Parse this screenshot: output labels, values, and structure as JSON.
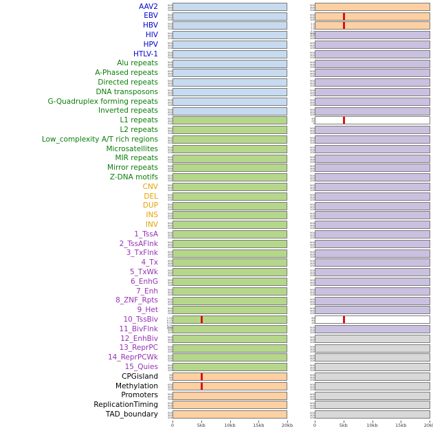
{
  "figure_background": "#ffffff",
  "palette": {
    "blue": "#c6dbef",
    "green": "#b5d78a",
    "peach": "#fdd0a2",
    "purple": "#cac1e0",
    "gray": "#d8d8d8",
    "white": "#ffffff",
    "spike": "#dd1111",
    "panel_border": "#7a7a7a",
    "axis_text": "#333333"
  },
  "label_colors": {
    "virus": "#0000cc",
    "repeat": "#0a7d0a",
    "sv": "#e69f00",
    "chromhmm": "#9632b4",
    "other": "#000000"
  },
  "default_ticks": [
    "500",
    "300",
    "100"
  ],
  "x_axis": {
    "ticks": [
      "0",
      "5kb",
      "10kb",
      "15kb",
      "20kb"
    ]
  },
  "chart_data": {
    "type": "area",
    "title": "",
    "description": "44 genomic feature rows, each with two horizontal signal track panels over a 0-20kb window; signal is flat in most panels with sharp red peaks at the 5kb position in a few panels.",
    "x": {
      "ticks": [
        "0",
        "5kb",
        "10kb",
        "15kb",
        "20kb"
      ],
      "range_kb": [
        0,
        20
      ]
    },
    "columns": 2,
    "spikes_at_5kb": [
      {
        "row": "EBV",
        "column": "right"
      },
      {
        "row": "HBV",
        "column": "right",
        "peak_value": 2.0
      },
      {
        "row": "L1 repeats",
        "column": "right",
        "peak_value": 40
      },
      {
        "row": "10_TssBiv",
        "column": "left",
        "peak_value": 1.0
      },
      {
        "row": "10_TssBiv",
        "column": "right",
        "peak_value": 60
      },
      {
        "row": "CPGisland",
        "column": "left",
        "peak_value": 90
      },
      {
        "row": "Methylation",
        "column": "left"
      }
    ]
  },
  "rows": [
    {
      "label": "AAV2",
      "group": "virus",
      "left": {
        "color": "blue"
      },
      "right": {
        "color": "peach"
      }
    },
    {
      "label": "EBV",
      "group": "virus",
      "left": {
        "color": "blue"
      },
      "right": {
        "color": "peach",
        "spike": true
      }
    },
    {
      "label": "HBV",
      "group": "virus",
      "left": {
        "color": "blue"
      },
      "right": {
        "color": "peach",
        "spike": true,
        "ticks": [
          "2.0",
          "1.5",
          "1.0",
          "0.5",
          "0.0"
        ]
      }
    },
    {
      "label": "HIV",
      "group": "virus",
      "left": {
        "color": "blue"
      },
      "right": {
        "color": "purple"
      }
    },
    {
      "label": "HPV",
      "group": "virus",
      "left": {
        "color": "blue"
      },
      "right": {
        "color": "purple"
      }
    },
    {
      "label": "HTLV-1",
      "group": "virus",
      "left": {
        "color": "blue"
      },
      "right": {
        "color": "purple"
      }
    },
    {
      "label": "Alu repeats",
      "group": "repeat",
      "left": {
        "color": "blue"
      },
      "right": {
        "color": "purple"
      }
    },
    {
      "label": "A-Phased repeats",
      "group": "repeat",
      "left": {
        "color": "blue"
      },
      "right": {
        "color": "purple"
      }
    },
    {
      "label": "Directed repeats",
      "group": "repeat",
      "left": {
        "color": "blue"
      },
      "right": {
        "color": "purple"
      }
    },
    {
      "label": "DNA transposons",
      "group": "repeat",
      "left": {
        "color": "blue"
      },
      "right": {
        "color": "purple"
      }
    },
    {
      "label": "G-Quadruplex forming repeats",
      "group": "repeat",
      "left": {
        "color": "blue"
      },
      "right": {
        "color": "purple"
      }
    },
    {
      "label": "Inverted repeats",
      "group": "repeat",
      "left": {
        "color": "blue"
      },
      "right": {
        "color": "purple"
      }
    },
    {
      "label": "L1 repeats",
      "group": "repeat",
      "left": {
        "color": "green"
      },
      "right": {
        "color": "white",
        "spike": true,
        "ticks": [
          "40",
          "20",
          "0"
        ]
      }
    },
    {
      "label": "L2 repeats",
      "group": "repeat",
      "left": {
        "color": "green"
      },
      "right": {
        "color": "purple"
      }
    },
    {
      "label": "Low_complexity A/T rich regions",
      "group": "repeat",
      "left": {
        "color": "green"
      },
      "right": {
        "color": "purple"
      }
    },
    {
      "label": "Microsatellites",
      "group": "repeat",
      "left": {
        "color": "green"
      },
      "right": {
        "color": "purple"
      }
    },
    {
      "label": "MIR repeats",
      "group": "repeat",
      "left": {
        "color": "green"
      },
      "right": {
        "color": "purple"
      }
    },
    {
      "label": "Mirror repeats",
      "group": "repeat",
      "left": {
        "color": "green"
      },
      "right": {
        "color": "purple"
      }
    },
    {
      "label": "Z-DNA motifs",
      "group": "repeat",
      "left": {
        "color": "green"
      },
      "right": {
        "color": "purple"
      }
    },
    {
      "label": "CNV",
      "group": "sv",
      "left": {
        "color": "green"
      },
      "right": {
        "color": "purple"
      }
    },
    {
      "label": "DEL",
      "group": "sv",
      "left": {
        "color": "green"
      },
      "right": {
        "color": "purple"
      }
    },
    {
      "label": "DUP",
      "group": "sv",
      "left": {
        "color": "green"
      },
      "right": {
        "color": "purple"
      }
    },
    {
      "label": "INS",
      "group": "sv",
      "left": {
        "color": "green"
      },
      "right": {
        "color": "purple"
      }
    },
    {
      "label": "INV",
      "group": "sv",
      "left": {
        "color": "green"
      },
      "right": {
        "color": "purple"
      }
    },
    {
      "label": "1_TssA",
      "group": "chromhmm",
      "left": {
        "color": "green"
      },
      "right": {
        "color": "purple"
      }
    },
    {
      "label": "2_TssAFlnk",
      "group": "chromhmm",
      "left": {
        "color": "green"
      },
      "right": {
        "color": "purple"
      }
    },
    {
      "label": "3_TxFlnk",
      "group": "chromhmm",
      "left": {
        "color": "green"
      },
      "right": {
        "color": "purple"
      }
    },
    {
      "label": "4_Tx",
      "group": "chromhmm",
      "left": {
        "color": "green"
      },
      "right": {
        "color": "purple"
      }
    },
    {
      "label": "5_TxWk",
      "group": "chromhmm",
      "left": {
        "color": "green"
      },
      "right": {
        "color": "purple"
      }
    },
    {
      "label": "6_EnhG",
      "group": "chromhmm",
      "left": {
        "color": "green"
      },
      "right": {
        "color": "purple"
      }
    },
    {
      "label": "7_Enh",
      "group": "chromhmm",
      "left": {
        "color": "green"
      },
      "right": {
        "color": "purple"
      }
    },
    {
      "label": "8_ZNF_Rpts",
      "group": "chromhmm",
      "left": {
        "color": "green"
      },
      "right": {
        "color": "purple"
      }
    },
    {
      "label": "9_Het",
      "group": "chromhmm",
      "left": {
        "color": "green"
      },
      "right": {
        "color": "purple"
      }
    },
    {
      "label": "10_TssBiv",
      "group": "chromhmm",
      "left": {
        "color": "green",
        "spike": true,
        "ticks": [
          "1.00",
          "0.75",
          "0.50",
          "0.25",
          "0.00"
        ]
      },
      "right": {
        "color": "white",
        "spike": true,
        "ticks": [
          "60",
          "40",
          "20"
        ]
      }
    },
    {
      "label": "11_BivFlnk",
      "group": "chromhmm",
      "left": {
        "color": "green"
      },
      "right": {
        "color": "purple"
      }
    },
    {
      "label": "12_EnhBiv",
      "group": "chromhmm",
      "left": {
        "color": "green"
      },
      "right": {
        "color": "gray"
      }
    },
    {
      "label": "13_ReprPC",
      "group": "chromhmm",
      "left": {
        "color": "green"
      },
      "right": {
        "color": "gray"
      }
    },
    {
      "label": "14_ReprPCWk",
      "group": "chromhmm",
      "left": {
        "color": "green"
      },
      "right": {
        "color": "gray"
      }
    },
    {
      "label": "15_Quies",
      "group": "chromhmm",
      "left": {
        "color": "green"
      },
      "right": {
        "color": "gray"
      }
    },
    {
      "label": "CPGisland",
      "group": "other",
      "left": {
        "color": "peach",
        "spike": true,
        "ticks": [
          "90",
          "60",
          "30"
        ]
      },
      "right": {
        "color": "gray"
      }
    },
    {
      "label": "Methylation",
      "group": "other",
      "left": {
        "color": "peach",
        "spike": true
      },
      "right": {
        "color": "gray"
      }
    },
    {
      "label": "Promoters",
      "group": "other",
      "left": {
        "color": "peach"
      },
      "right": {
        "color": "gray"
      }
    },
    {
      "label": "ReplicationTiming",
      "group": "other",
      "left": {
        "color": "peach"
      },
      "right": {
        "color": "gray"
      }
    },
    {
      "label": "TAD_boundary",
      "group": "other",
      "left": {
        "color": "peach"
      },
      "right": {
        "color": "gray"
      }
    }
  ]
}
